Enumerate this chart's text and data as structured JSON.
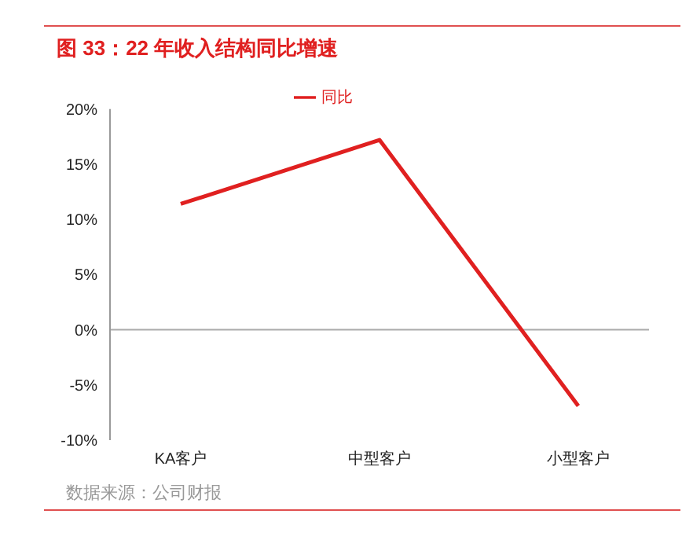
{
  "chart_data": {
    "type": "line",
    "title": "图 33：22 年收入结构同比增速",
    "categories": [
      "KA客户",
      "中型客户",
      "小型客户"
    ],
    "series": [
      {
        "name": "同比",
        "color": "#e02020",
        "values": [
          11.4,
          17.2,
          -6.9
        ]
      }
    ],
    "ylim": [
      -10,
      20
    ],
    "yticks": [
      {
        "value": -10,
        "label": "-10%"
      },
      {
        "value": -5,
        "label": "-5%"
      },
      {
        "value": 0,
        "label": "0%"
      },
      {
        "value": 5,
        "label": "5%"
      },
      {
        "value": 10,
        "label": "10%"
      },
      {
        "value": 15,
        "label": "15%"
      },
      {
        "value": 20,
        "label": "20%"
      }
    ],
    "ref_lines": [
      {
        "axis": "y",
        "value": 0,
        "label": null,
        "color": "#aaaaaa"
      }
    ],
    "legend": "top",
    "marker": "none",
    "line_style": "solid",
    "annotations": [
      "数据来源：公司财报"
    ]
  }
}
